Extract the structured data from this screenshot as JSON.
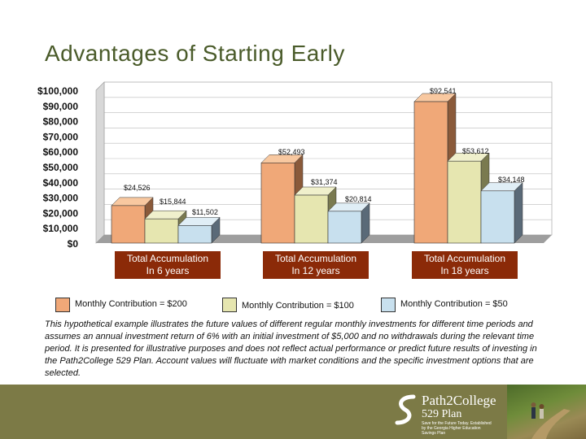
{
  "title": "Advantages of Starting Early",
  "chart_data": {
    "type": "bar",
    "categories": [
      "Total Accumulation\nIn 6 years",
      "Total Accumulation\nIn 12 years",
      "Total Accumulation\nIn 18 years"
    ],
    "series": [
      {
        "name": "Monthly Contribution = $200",
        "values": [
          24526,
          52493,
          92541
        ],
        "labels": [
          "$24,526",
          "$52,493",
          "$92,541"
        ]
      },
      {
        "name": "Monthly Contribution = $100",
        "values": [
          15844,
          31374,
          53612
        ],
        "labels": [
          "$15,844",
          "$31,374",
          "$53,612"
        ]
      },
      {
        "name": "Monthly Contribution = $50",
        "values": [
          11502,
          20814,
          34148
        ],
        "labels": [
          "$11,502",
          "$20,814",
          "$34,148"
        ]
      }
    ],
    "ylim": [
      0,
      100000
    ],
    "yticks": [
      "$0",
      "$10,000",
      "$20,000",
      "$30,000",
      "$40,000",
      "$50,000",
      "$60,000",
      "$70,000",
      "$80,000",
      "$90,000",
      "$100,000"
    ],
    "grid": true,
    "legend_position": "bottom"
  },
  "group_labels": [
    {
      "line1": "Total Accumulation",
      "line2": "In 6 years"
    },
    {
      "line1": "Total Accumulation",
      "line2": "In 12 years"
    },
    {
      "line1": "Total Accumulation",
      "line2": "In 18 years"
    }
  ],
  "legend": [
    {
      "label": "Monthly Contribution = $200",
      "color": "#f0a878"
    },
    {
      "label": "Monthly Contribution = $100",
      "color": "#e6e6b0"
    },
    {
      "label": "Monthly Contribution = $50",
      "color": "#c8e0ee"
    }
  ],
  "disclaimer": "This hypothetical example illustrates the future values of different regular monthly investments for different time periods and assumes an annual investment return of 6% with an initial investment of $5,000 and no withdrawals during the relevant time period. It is presented for illustrative purposes and does not reflect actual performance or predict future results of investing in the Path2College 529 Plan. Account values will fluctuate with market conditions and the specific investment options that are selected.",
  "footer": {
    "logo_main": "Path2College",
    "logo_sub": "529 Plan",
    "logo_tag": "Save for the Future Today. Established by the Georgia Higher Education Savings Plan"
  },
  "colors": {
    "title": "#4a5b2a",
    "label_bg": "#8b2a08",
    "footer_bg": "#7c7a46"
  }
}
